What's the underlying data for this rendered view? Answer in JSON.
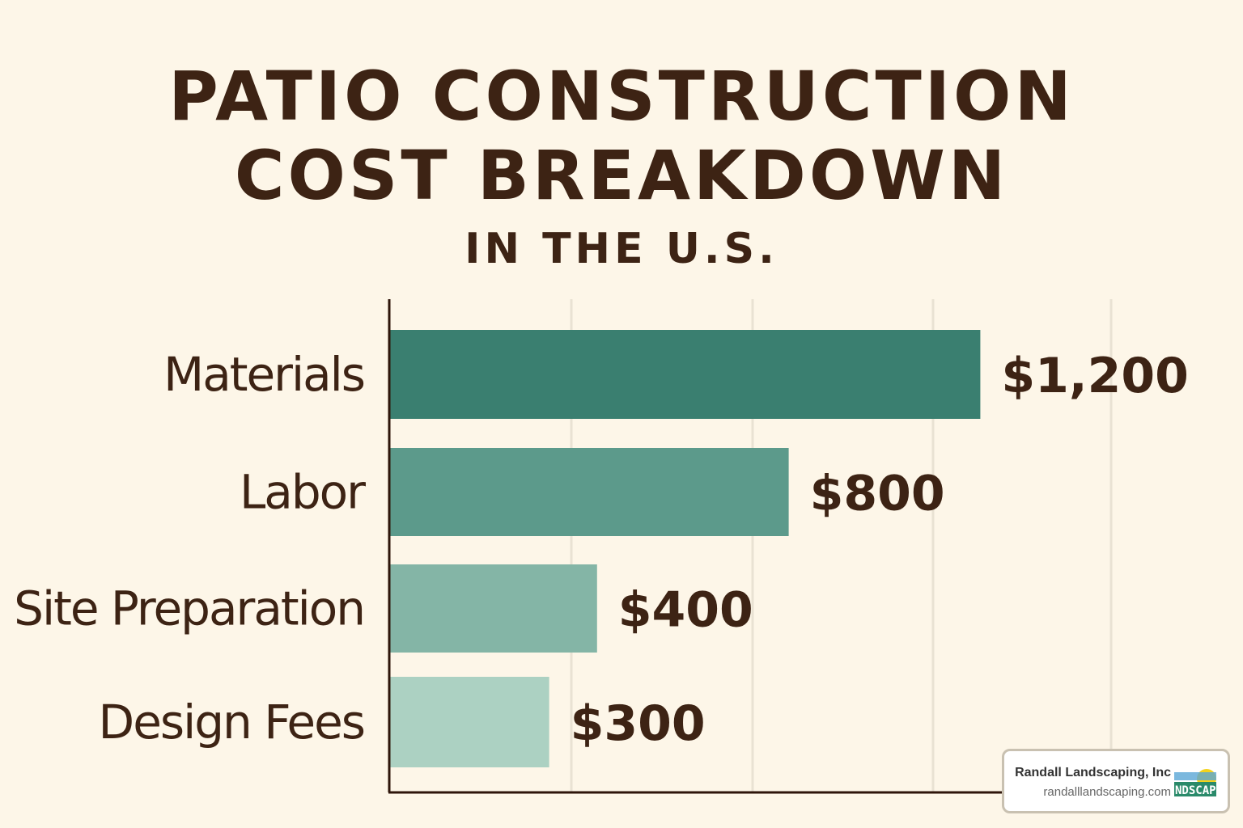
{
  "chart_data": {
    "type": "bar",
    "orientation": "horizontal",
    "title": "PATIO CONSTRUCTION COST BREAKDOWN",
    "title_line1": "PATIO CONSTRUCTION",
    "title_line2": "COST BREAKDOWN",
    "subtitle": "IN THE U.S.",
    "categories": [
      "Materials",
      "Labor",
      "Site Preparation",
      "Design Fees"
    ],
    "values": [
      1200,
      800,
      400,
      300
    ],
    "value_labels": [
      "$1,200",
      "$800",
      "$400",
      "$300"
    ],
    "colors": [
      "#3a7f70",
      "#5c9a8b",
      "#84b5a6",
      "#acd1c2"
    ],
    "xlabel": "",
    "ylabel": "",
    "grid": "vertical",
    "legend": "none"
  },
  "watermark": {
    "company": "Randall Landscaping, Inc",
    "url": "randalllandscaping.com",
    "logo_text": "NDSCAP"
  }
}
